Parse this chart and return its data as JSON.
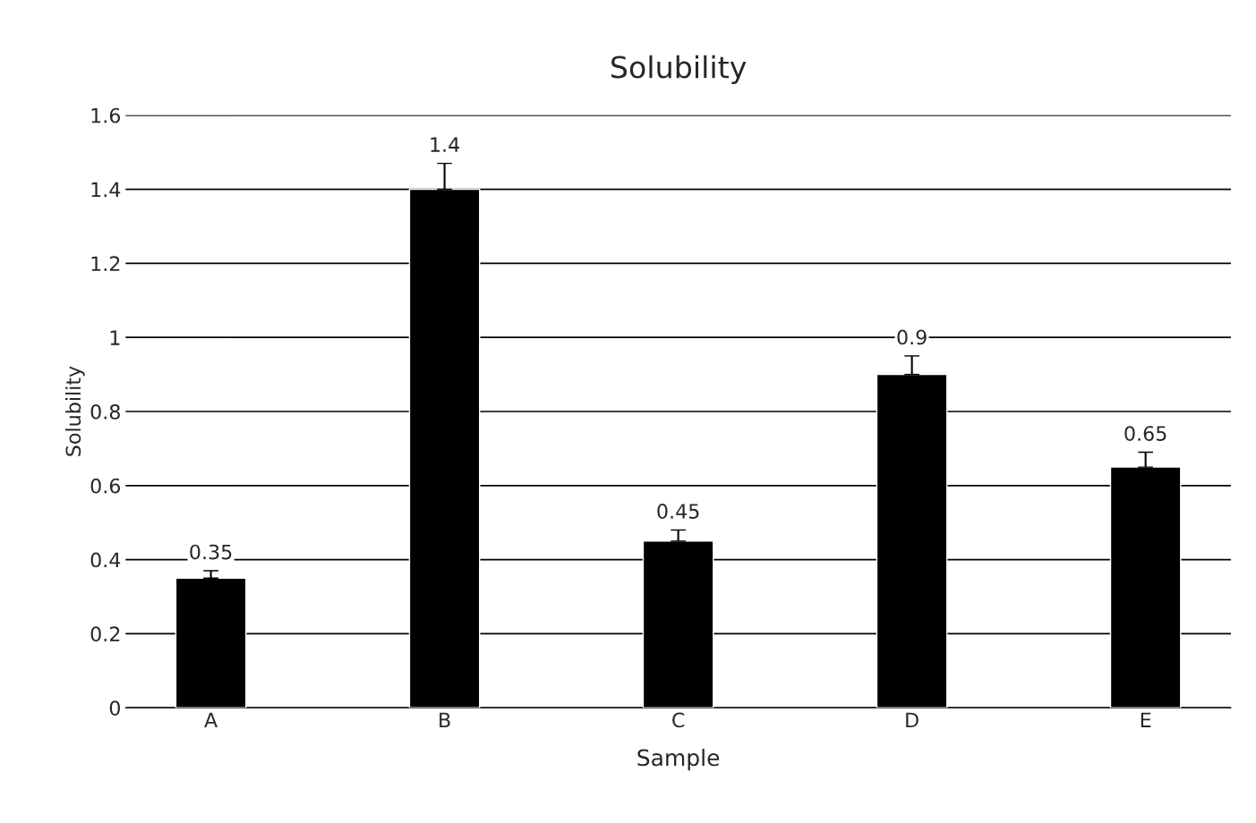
{
  "chart_data": {
    "type": "bar",
    "title": "Solubility",
    "xlabel": "Sample",
    "ylabel": "Solubility",
    "categories": [
      "A",
      "B",
      "C",
      "D",
      "E"
    ],
    "values": [
      0.35,
      1.4,
      0.45,
      0.9,
      0.65
    ],
    "errors": [
      0.02,
      0.07,
      0.03,
      0.05,
      0.04
    ],
    "color": "#000000",
    "data_labels": true,
    "ylim": [
      0,
      1.6
    ],
    "yticks": [
      0,
      {
        "value": 0.2,
        "label": "0.2"
      },
      {
        "value": 0.4,
        "label": "0.4"
      },
      {
        "value": 0.6,
        "label": "0.6"
      },
      {
        "value": 0.8,
        "label": "0.8"
      },
      1,
      {
        "value": 1.2,
        "label": "1.2"
      },
      {
        "value": 1.4,
        "label": "1.4"
      },
      {
        "value": 1.6,
        "label": "1.6"
      }
    ],
    "grid": "y",
    "legend": false
  }
}
